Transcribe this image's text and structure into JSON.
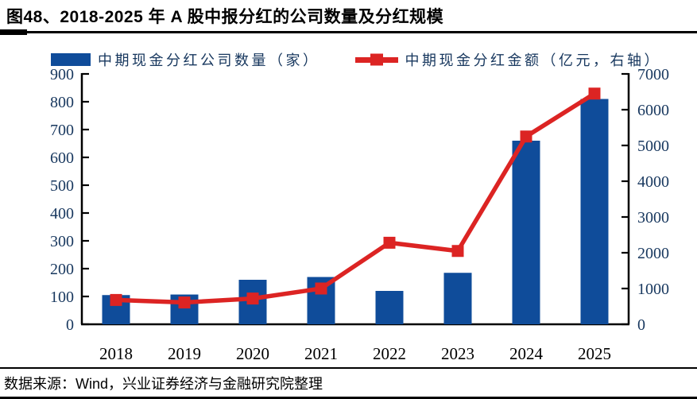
{
  "header": {
    "title": "图48、2018-2025 年 A 股中报分红的公司数量及分红规模"
  },
  "legend": {
    "bar_label": "中期现金分红公司数量（家）",
    "line_label": "中期现金分红金额（亿元，右轴）"
  },
  "footer": {
    "source": "数据来源：Wind，兴业证券经济与金融研究院整理"
  },
  "colors": {
    "bar_blue": "#0F4C9A",
    "line_red": "#DC2423",
    "axis_text_navy": "#17375E",
    "axis_line_black": "#000000"
  },
  "chart_data": {
    "type": "bar+line combo, dual y-axes",
    "title": "图48、2018-2025 年 A 股中报分红的公司数量及分红规模",
    "categories": [
      "2018",
      "2019",
      "2020",
      "2021",
      "2022",
      "2023",
      "2024",
      "2025"
    ],
    "series": [
      {
        "name": "中期现金分红公司数量（家）",
        "type": "bar",
        "axis": "left",
        "color": "#0F4C9A",
        "values": [
          105,
          107,
          160,
          170,
          120,
          185,
          660,
          810
        ]
      },
      {
        "name": "中期现金分红金额（亿元，右轴）",
        "type": "line",
        "marker": "square",
        "axis": "right",
        "color": "#DC2423",
        "values": [
          680,
          610,
          720,
          1000,
          2280,
          2050,
          5250,
          6450
        ]
      }
    ],
    "left_axis": {
      "min": 0,
      "max": 900,
      "step": 100,
      "ticks": [
        "0",
        "100",
        "200",
        "300",
        "400",
        "500",
        "600",
        "700",
        "800",
        "900"
      ]
    },
    "right_axis": {
      "min": 0,
      "max": 7000,
      "step": 1000,
      "ticks": [
        "0",
        "1000",
        "2000",
        "3000",
        "4000",
        "5000",
        "6000",
        "7000"
      ]
    },
    "grid": false,
    "legend_position": "top"
  }
}
